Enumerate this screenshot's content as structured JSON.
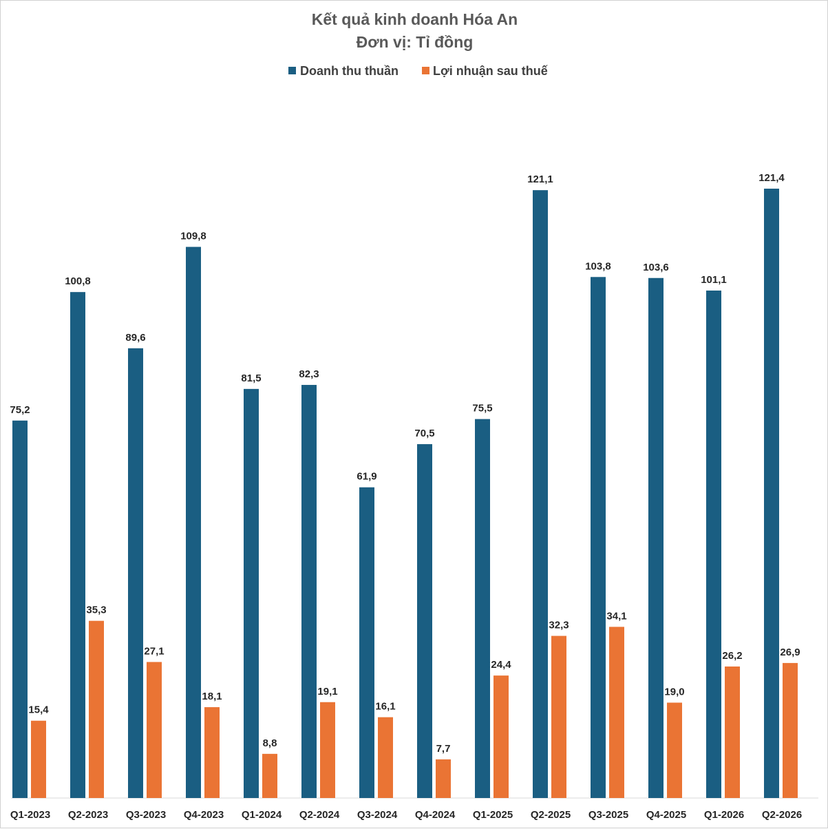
{
  "chart_data": {
    "type": "bar",
    "title": "Kết quả kinh doanh Hóa An",
    "subtitle": "Đơn vị: Tỉ đồng",
    "categories": [
      "Q1-2023",
      "Q2-2023",
      "Q3-2023",
      "Q4-2023",
      "Q1-2024",
      "Q2-2024",
      "Q3-2024",
      "Q4-2024",
      "Q1-2025",
      "Q2-2025",
      "Q3-2025",
      "Q4-2025",
      "Q1-2026",
      "Q2-2026"
    ],
    "series": [
      {
        "name": "Doanh thu thuần",
        "color": "#1a5e82",
        "values": [
          75.2,
          100.8,
          89.6,
          109.8,
          81.5,
          82.3,
          61.9,
          70.5,
          75.5,
          121.1,
          103.8,
          103.6,
          101.1,
          121.4
        ],
        "labels": [
          "75,2",
          "100,8",
          "89,6",
          "109,8",
          "81,5",
          "82,3",
          "61,9",
          "70,5",
          "75,5",
          "121,1",
          "103,8",
          "103,6",
          "101,1",
          "121,4"
        ]
      },
      {
        "name": "Lợi nhuận sau thuế",
        "color": "#ea7434",
        "values": [
          15.4,
          35.3,
          27.1,
          18.1,
          8.8,
          19.1,
          16.1,
          7.7,
          24.4,
          32.3,
          34.1,
          19.0,
          26.2,
          26.9
        ],
        "labels": [
          "15,4",
          "35,3",
          "27,1",
          "18,1",
          "8,8",
          "19,1",
          "16,1",
          "7,7",
          "24,4",
          "32,3",
          "34,1",
          "19,0",
          "26,2",
          "26,9"
        ]
      }
    ],
    "ylim": [
      0,
      121.4
    ],
    "legend_position": "top-center",
    "grid": false
  }
}
